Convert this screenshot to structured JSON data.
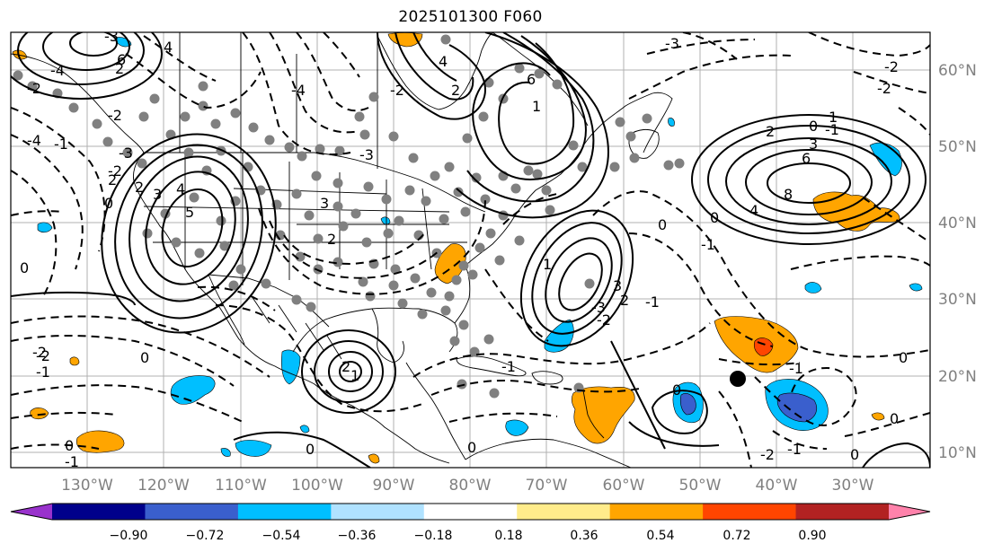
{
  "title": "2025101300 F060",
  "lon_labels": [
    "130°W",
    "120°W",
    "110°W",
    "100°W",
    "90°W",
    "80°W",
    "70°W",
    "60°W",
    "50°W",
    "40°W",
    "30°W"
  ],
  "lat_labels": [
    "60°N",
    "50°N",
    "40°N",
    "30°N",
    "20°N",
    "10°N"
  ],
  "colorbar": {
    "ticks": [
      "−0.90",
      "−0.72",
      "−0.54",
      "−0.36",
      "−0.18",
      "0.18",
      "0.36",
      "0.54",
      "0.72",
      "0.90"
    ],
    "colors": [
      "#9932cc",
      "#00008b",
      "#3a5fcd",
      "#00bfff",
      "#b0e2ff",
      "#ffffff",
      "#ffec8b",
      "#ffa500",
      "#ff4500",
      "#b22222",
      "#ff82ab"
    ]
  },
  "contour_labels": [
    "6",
    "4",
    "2",
    "2",
    "3",
    "4",
    "6",
    "8",
    "-3",
    "-2",
    "-4",
    "6",
    "4",
    "2",
    "2",
    "3",
    "4",
    "5",
    "3",
    "2",
    "1",
    "0",
    "-1",
    "-2",
    "-3",
    "-4",
    "0",
    "2",
    "1",
    "0",
    "0",
    "0",
    "0",
    "-1",
    "-2",
    "-1",
    "0",
    "-2",
    "-1",
    "0",
    "0",
    "3",
    "2",
    "1",
    "-2",
    "-4",
    "-3",
    "-2",
    "-1",
    "-3",
    "-2",
    "0",
    "-1",
    "0",
    "1",
    "-2",
    "-1",
    "-2",
    "-3",
    "2",
    "0",
    "-1",
    "-2",
    "-1",
    "0"
  ],
  "markers": {
    "big_dot": "black",
    "small_dots": "gray"
  }
}
